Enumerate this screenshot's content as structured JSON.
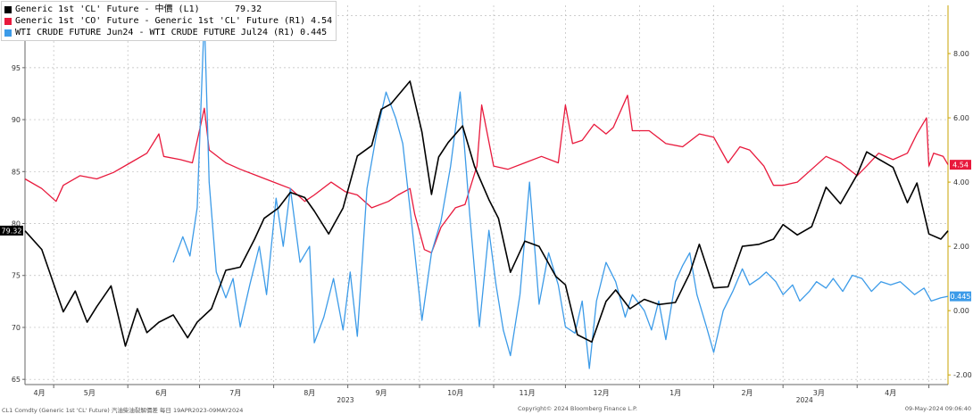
{
  "legend": [
    {
      "name": "Generic 1st 'CL' Future - 中價 (L1)",
      "value": "79.32",
      "color": "#000000"
    },
    {
      "name": "Generic 1st 'CO' Future - Generic 1st 'CL' Future (R1)",
      "value": "4.54",
      "color": "#e8193c"
    },
    {
      "name": "WTI CRUDE FUTURE Jun24 - WTI CRUDE FUTURE Jul24 (R1)",
      "value": "0.445",
      "color": "#3c9be8"
    }
  ],
  "footer": {
    "left": "CL1 Comdty (Generic 1st 'CL' Future) 汽油柴油裂解價差 每日 19APR2023-09MAY2024",
    "center": "Copyright© 2024 Bloomberg Finance L.P.",
    "right": "09-May-2024 09:06:40"
  },
  "chart_data": {
    "type": "line",
    "x_range": [
      "2023-04-19",
      "2024-05-09"
    ],
    "x_month_ticks": [
      "4月",
      "5月",
      "6月",
      "7月",
      "8月",
      "9月",
      "10月",
      "11月",
      "12月",
      "1月",
      "2月",
      "3月",
      "4月"
    ],
    "x_year_labels": [
      "2023",
      "2024"
    ],
    "y_left": {
      "ticks": [
        65,
        70,
        75,
        80,
        85,
        90,
        95,
        100
      ],
      "range": [
        64.5,
        101
      ]
    },
    "y_right": {
      "ticks": [
        "-2.00",
        "0.00",
        "2.00",
        "4.00",
        "6.00",
        "8.00"
      ],
      "range": [
        -2.3,
        9.5
      ]
    },
    "grid": true,
    "legend_position": "top-left",
    "last_value_labels": {
      "CL": "79.32",
      "CO_CL": "4.54",
      "calendar_spread": "0.445"
    },
    "series": [
      {
        "name": "Generic 1st 'CL' Future - 中價 (L1)",
        "axis": "left",
        "color": "#000000",
        "points": [
          [
            "2023-04-19",
            79.3
          ],
          [
            "2023-04-26",
            77.5
          ],
          [
            "2023-05-01",
            74.2
          ],
          [
            "2023-05-05",
            71.5
          ],
          [
            "2023-05-10",
            73.5
          ],
          [
            "2023-05-15",
            70.5
          ],
          [
            "2023-05-19",
            72.0
          ],
          [
            "2023-05-25",
            74.0
          ],
          [
            "2023-05-31",
            68.2
          ],
          [
            "2023-06-05",
            71.8
          ],
          [
            "2023-06-09",
            69.5
          ],
          [
            "2023-06-14",
            70.5
          ],
          [
            "2023-06-20",
            71.2
          ],
          [
            "2023-06-26",
            69.0
          ],
          [
            "2023-06-30",
            70.5
          ],
          [
            "2023-07-06",
            71.8
          ],
          [
            "2023-07-12",
            75.5
          ],
          [
            "2023-07-18",
            75.8
          ],
          [
            "2023-07-24",
            78.5
          ],
          [
            "2023-07-28",
            80.5
          ],
          [
            "2023-08-03",
            81.5
          ],
          [
            "2023-08-08",
            83.0
          ],
          [
            "2023-08-14",
            82.5
          ],
          [
            "2023-08-18",
            81.2
          ],
          [
            "2023-08-24",
            79.0
          ],
          [
            "2023-08-30",
            81.5
          ],
          [
            "2023-09-05",
            86.5
          ],
          [
            "2023-09-11",
            87.5
          ],
          [
            "2023-09-15",
            91.0
          ],
          [
            "2023-09-19",
            91.5
          ],
          [
            "2023-09-27",
            93.7
          ],
          [
            "2023-10-02",
            88.8
          ],
          [
            "2023-10-06",
            82.8
          ],
          [
            "2023-10-09",
            86.4
          ],
          [
            "2023-10-13",
            87.8
          ],
          [
            "2023-10-19",
            89.4
          ],
          [
            "2023-10-24",
            85.5
          ],
          [
            "2023-10-30",
            82.3
          ],
          [
            "2023-11-03",
            80.5
          ],
          [
            "2023-11-08",
            75.3
          ],
          [
            "2023-11-14",
            78.3
          ],
          [
            "2023-11-20",
            77.8
          ],
          [
            "2023-11-27",
            74.9
          ],
          [
            "2023-12-01",
            74.1
          ],
          [
            "2023-12-06",
            69.3
          ],
          [
            "2023-12-12",
            68.6
          ],
          [
            "2023-12-18",
            72.5
          ],
          [
            "2023-12-22",
            73.6
          ],
          [
            "2023-12-28",
            71.8
          ],
          [
            "2024-01-03",
            72.7
          ],
          [
            "2024-01-09",
            72.2
          ],
          [
            "2024-01-16",
            72.4
          ],
          [
            "2024-01-22",
            75.2
          ],
          [
            "2024-01-26",
            78.0
          ],
          [
            "2024-02-01",
            73.8
          ],
          [
            "2024-02-07",
            73.9
          ],
          [
            "2024-02-13",
            77.8
          ],
          [
            "2024-02-20",
            78.0
          ],
          [
            "2024-02-26",
            78.5
          ],
          [
            "2024-03-01",
            79.9
          ],
          [
            "2024-03-07",
            78.9
          ],
          [
            "2024-03-13",
            79.7
          ],
          [
            "2024-03-19",
            83.5
          ],
          [
            "2024-03-25",
            81.9
          ],
          [
            "2024-04-01",
            84.7
          ],
          [
            "2024-04-05",
            86.9
          ],
          [
            "2024-04-10",
            86.2
          ],
          [
            "2024-04-16",
            85.4
          ],
          [
            "2024-04-22",
            82.0
          ],
          [
            "2024-04-26",
            83.9
          ],
          [
            "2024-05-01",
            79.0
          ],
          [
            "2024-05-06",
            78.5
          ],
          [
            "2024-05-09",
            79.3
          ]
        ]
      },
      {
        "name": "Generic 1st 'CO' Future - Generic 1st 'CL' Future (R1)",
        "axis": "right",
        "color": "#e8193c",
        "points": [
          [
            "2023-04-19",
            4.1
          ],
          [
            "2023-04-26",
            3.8
          ],
          [
            "2023-05-02",
            3.4
          ],
          [
            "2023-05-05",
            3.9
          ],
          [
            "2023-05-12",
            4.2
          ],
          [
            "2023-05-19",
            4.1
          ],
          [
            "2023-05-26",
            4.3
          ],
          [
            "2023-06-02",
            4.6
          ],
          [
            "2023-06-09",
            4.9
          ],
          [
            "2023-06-14",
            5.5
          ],
          [
            "2023-06-16",
            4.8
          ],
          [
            "2023-06-23",
            4.7
          ],
          [
            "2023-06-28",
            4.6
          ],
          [
            "2023-07-03",
            6.3
          ],
          [
            "2023-07-05",
            5.0
          ],
          [
            "2023-07-12",
            4.6
          ],
          [
            "2023-07-18",
            4.4
          ],
          [
            "2023-07-25",
            4.2
          ],
          [
            "2023-08-01",
            4.0
          ],
          [
            "2023-08-08",
            3.8
          ],
          [
            "2023-08-14",
            3.4
          ],
          [
            "2023-08-18",
            3.6
          ],
          [
            "2023-08-25",
            4.0
          ],
          [
            "2023-08-31",
            3.7
          ],
          [
            "2023-09-05",
            3.6
          ],
          [
            "2023-09-11",
            3.2
          ],
          [
            "2023-09-18",
            3.4
          ],
          [
            "2023-09-22",
            3.6
          ],
          [
            "2023-09-27",
            3.8
          ],
          [
            "2023-09-29",
            3.0
          ],
          [
            "2023-10-03",
            1.9
          ],
          [
            "2023-10-06",
            1.8
          ],
          [
            "2023-10-10",
            2.6
          ],
          [
            "2023-10-16",
            3.2
          ],
          [
            "2023-10-20",
            3.3
          ],
          [
            "2023-10-25",
            4.5
          ],
          [
            "2023-10-27",
            6.4
          ],
          [
            "2023-11-01",
            4.5
          ],
          [
            "2023-11-07",
            4.4
          ],
          [
            "2023-11-14",
            4.6
          ],
          [
            "2023-11-21",
            4.8
          ],
          [
            "2023-11-28",
            4.6
          ],
          [
            "2023-12-01",
            6.4
          ],
          [
            "2023-12-04",
            5.2
          ],
          [
            "2023-12-08",
            5.3
          ],
          [
            "2023-12-13",
            5.8
          ],
          [
            "2023-12-18",
            5.5
          ],
          [
            "2023-12-21",
            5.7
          ],
          [
            "2023-12-27",
            6.7
          ],
          [
            "2023-12-29",
            5.6
          ],
          [
            "2024-01-05",
            5.6
          ],
          [
            "2024-01-12",
            5.2
          ],
          [
            "2024-01-19",
            5.1
          ],
          [
            "2024-01-26",
            5.5
          ],
          [
            "2024-02-01",
            5.4
          ],
          [
            "2024-02-07",
            4.6
          ],
          [
            "2024-02-12",
            5.1
          ],
          [
            "2024-02-16",
            5.0
          ],
          [
            "2024-02-22",
            4.5
          ],
          [
            "2024-02-26",
            3.9
          ],
          [
            "2024-03-01",
            3.9
          ],
          [
            "2024-03-07",
            4.0
          ],
          [
            "2024-03-13",
            4.4
          ],
          [
            "2024-03-19",
            4.8
          ],
          [
            "2024-03-25",
            4.6
          ],
          [
            "2024-04-01",
            4.2
          ],
          [
            "2024-04-05",
            4.5
          ],
          [
            "2024-04-10",
            4.9
          ],
          [
            "2024-04-16",
            4.7
          ],
          [
            "2024-04-22",
            4.9
          ],
          [
            "2024-04-26",
            5.5
          ],
          [
            "2024-04-30",
            6.0
          ],
          [
            "2024-05-01",
            4.5
          ],
          [
            "2024-05-03",
            4.9
          ],
          [
            "2024-05-07",
            4.8
          ],
          [
            "2024-05-09",
            4.54
          ]
        ]
      },
      {
        "name": "WTI CRUDE FUTURE Jun24 - WTI CRUDE FUTURE Jul24 (R1)",
        "axis": "right",
        "color": "#3c9be8",
        "points": [
          [
            "2023-06-20",
            1.5
          ],
          [
            "2023-06-24",
            2.3
          ],
          [
            "2023-06-27",
            1.7
          ],
          [
            "2023-06-30",
            3.2
          ],
          [
            "2023-07-03",
            9.2
          ],
          [
            "2023-07-05",
            4.0
          ],
          [
            "2023-07-08",
            1.2
          ],
          [
            "2023-07-12",
            0.4
          ],
          [
            "2023-07-15",
            1.0
          ],
          [
            "2023-07-18",
            -0.5
          ],
          [
            "2023-07-22",
            0.8
          ],
          [
            "2023-07-26",
            2.0
          ],
          [
            "2023-07-29",
            0.5
          ],
          [
            "2023-08-02",
            3.5
          ],
          [
            "2023-08-05",
            2.0
          ],
          [
            "2023-08-08",
            3.8
          ],
          [
            "2023-08-12",
            1.5
          ],
          [
            "2023-08-16",
            2.0
          ],
          [
            "2023-08-18",
            -1.0
          ],
          [
            "2023-08-22",
            -0.2
          ],
          [
            "2023-08-26",
            1.0
          ],
          [
            "2023-08-30",
            -0.6
          ],
          [
            "2023-09-02",
            1.2
          ],
          [
            "2023-09-05",
            -0.8
          ],
          [
            "2023-09-09",
            3.8
          ],
          [
            "2023-09-13",
            5.5
          ],
          [
            "2023-09-17",
            6.8
          ],
          [
            "2023-09-21",
            6.0
          ],
          [
            "2023-09-24",
            5.2
          ],
          [
            "2023-09-28",
            2.5
          ],
          [
            "2023-10-02",
            -0.3
          ],
          [
            "2023-10-06",
            1.8
          ],
          [
            "2023-10-10",
            2.8
          ],
          [
            "2023-10-14",
            4.5
          ],
          [
            "2023-10-18",
            6.8
          ],
          [
            "2023-10-22",
            3.0
          ],
          [
            "2023-10-26",
            -0.5
          ],
          [
            "2023-10-30",
            2.5
          ],
          [
            "2023-11-02",
            0.8
          ],
          [
            "2023-11-05",
            -0.6
          ],
          [
            "2023-11-08",
            -1.4
          ],
          [
            "2023-11-12",
            0.5
          ],
          [
            "2023-11-16",
            4.0
          ],
          [
            "2023-11-20",
            0.2
          ],
          [
            "2023-11-24",
            1.8
          ],
          [
            "2023-11-28",
            0.8
          ],
          [
            "2023-12-01",
            -0.5
          ],
          [
            "2023-12-05",
            -0.7
          ],
          [
            "2023-12-08",
            0.3
          ],
          [
            "2023-12-11",
            -1.8
          ],
          [
            "2023-12-14",
            0.3
          ],
          [
            "2023-12-18",
            1.5
          ],
          [
            "2023-12-22",
            0.9
          ],
          [
            "2023-12-26",
            -0.2
          ],
          [
            "2023-12-29",
            0.5
          ],
          [
            "2024-01-03",
            0.0
          ],
          [
            "2024-01-06",
            -0.6
          ],
          [
            "2024-01-09",
            0.3
          ],
          [
            "2024-01-12",
            -0.9
          ],
          [
            "2024-01-16",
            0.9
          ],
          [
            "2024-01-19",
            1.4
          ],
          [
            "2024-01-22",
            1.8
          ],
          [
            "2024-01-25",
            0.5
          ],
          [
            "2024-01-29",
            -0.5
          ],
          [
            "2024-02-01",
            -1.3
          ],
          [
            "2024-02-05",
            0.0
          ],
          [
            "2024-02-09",
            0.6
          ],
          [
            "2024-02-13",
            1.3
          ],
          [
            "2024-02-16",
            0.8
          ],
          [
            "2024-02-20",
            1.0
          ],
          [
            "2024-02-23",
            1.2
          ],
          [
            "2024-02-27",
            0.9
          ],
          [
            "2024-03-01",
            0.5
          ],
          [
            "2024-03-05",
            0.8
          ],
          [
            "2024-03-08",
            0.3
          ],
          [
            "2024-03-12",
            0.6
          ],
          [
            "2024-03-15",
            0.9
          ],
          [
            "2024-03-19",
            0.7
          ],
          [
            "2024-03-22",
            1.0
          ],
          [
            "2024-03-26",
            0.6
          ],
          [
            "2024-03-30",
            1.1
          ],
          [
            "2024-04-03",
            1.0
          ],
          [
            "2024-04-07",
            0.6
          ],
          [
            "2024-04-11",
            0.9
          ],
          [
            "2024-04-15",
            0.8
          ],
          [
            "2024-04-19",
            0.9
          ],
          [
            "2024-04-22",
            0.7
          ],
          [
            "2024-04-25",
            0.5
          ],
          [
            "2024-04-29",
            0.7
          ],
          [
            "2024-05-02",
            0.3
          ],
          [
            "2024-05-06",
            0.4
          ],
          [
            "2024-05-09",
            0.445
          ]
        ]
      }
    ]
  }
}
